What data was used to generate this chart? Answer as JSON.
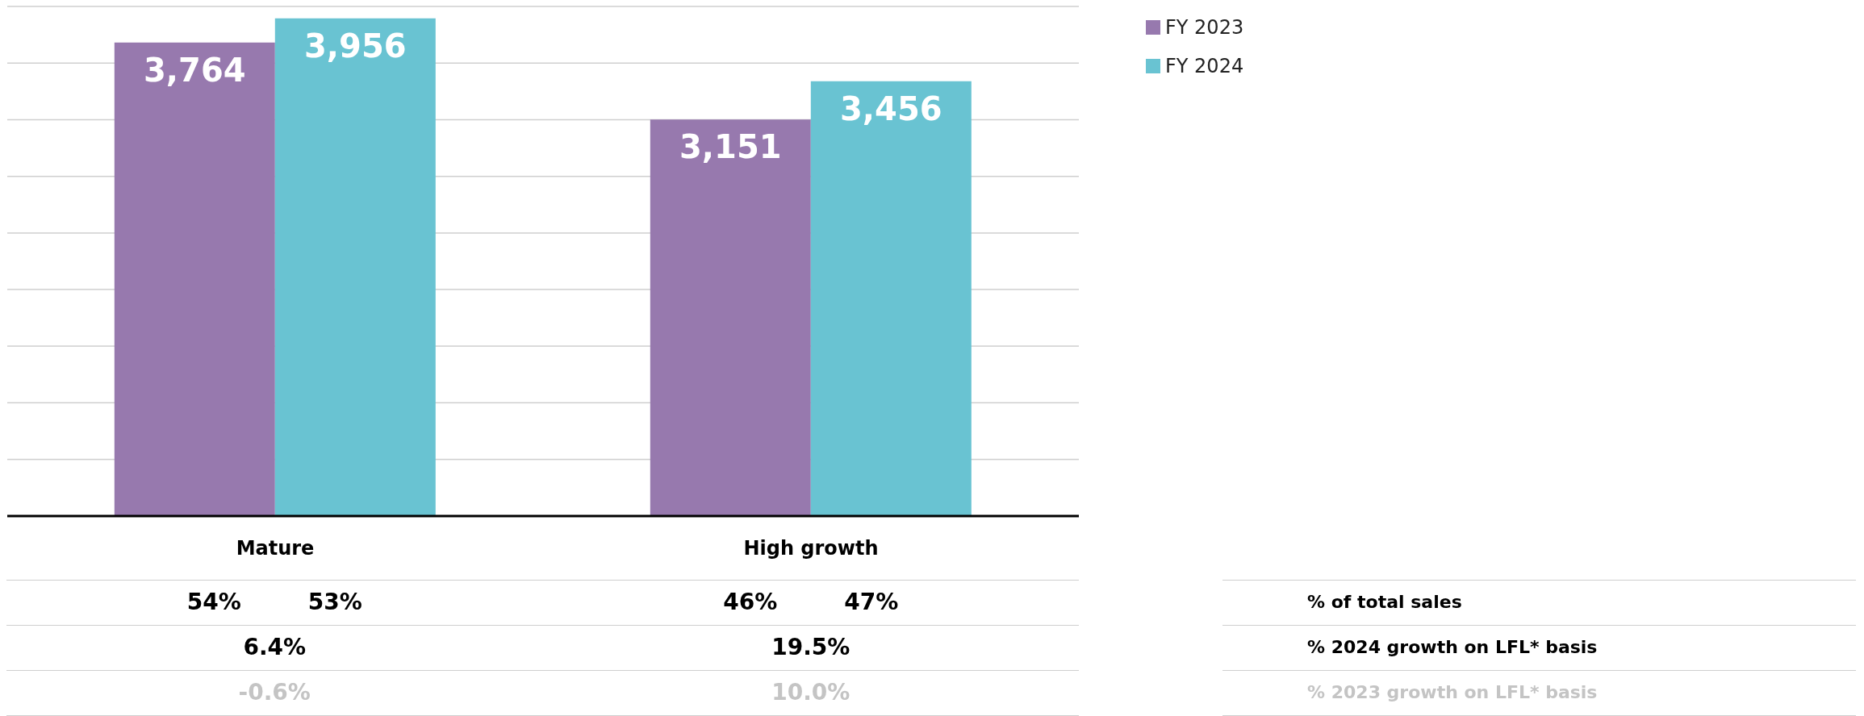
{
  "chart_data": {
    "type": "bar",
    "categories": [
      "Mature",
      "High growth"
    ],
    "series": [
      {
        "name": "FY 2023",
        "color": "#9779ae",
        "values": [
          3764,
          3151
        ],
        "value_labels": [
          "3,764",
          "3,151"
        ]
      },
      {
        "name": "FY 2024",
        "color": "#69c3d2",
        "values": [
          3956,
          3456
        ],
        "value_labels": [
          "3,956",
          "3,456"
        ]
      }
    ],
    "tick_labels": "x",
    "grid": "y",
    "legend": "top right",
    "annotations": [
      "% of total sales",
      "54%",
      "53%",
      "46%",
      "47%",
      "% 2024 growth on LFL* basis",
      "6.4%",
      "19.5%",
      "% 2023 growth on LFL* basis",
      "-0.6%",
      "10.0%"
    ]
  }
}
